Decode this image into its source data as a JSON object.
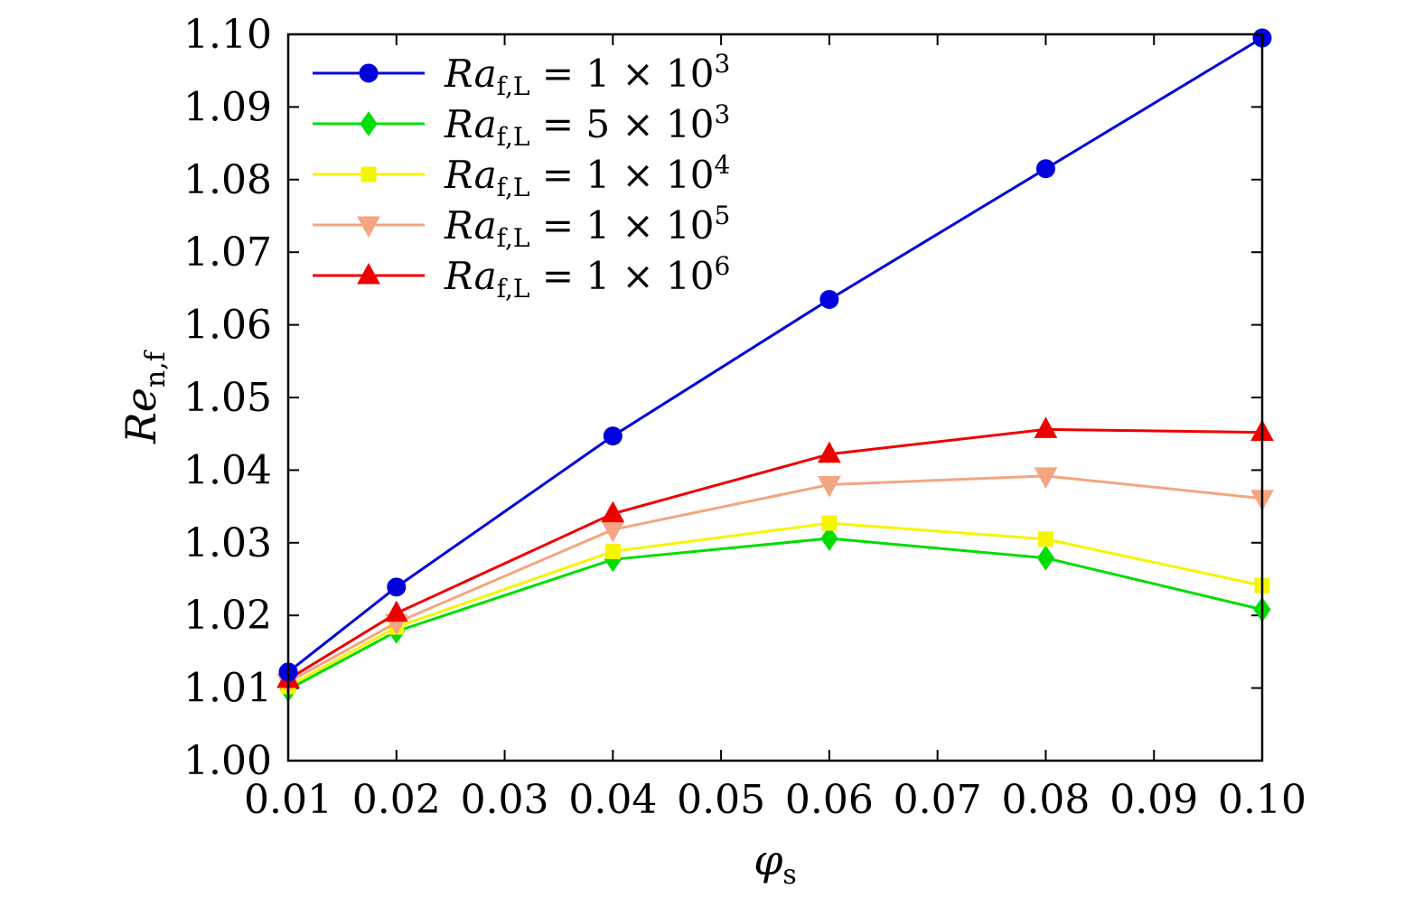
{
  "chart_data": {
    "type": "line",
    "x": [
      0.01,
      0.02,
      0.04,
      0.06,
      0.08,
      0.1
    ],
    "xlabel": {
      "base": "φ",
      "sub": "s"
    },
    "ylabel": {
      "base": "Re",
      "sub": "n,f"
    },
    "xlim": [
      0.01,
      0.1
    ],
    "ylim": [
      1.0,
      1.1
    ],
    "xticks": [
      "0.01",
      "0.02",
      "0.03",
      "0.04",
      "0.05",
      "0.06",
      "0.07",
      "0.08",
      "0.09",
      "0.10"
    ],
    "yticks": [
      "1.00",
      "1.01",
      "1.02",
      "1.03",
      "1.04",
      "1.05",
      "1.06",
      "1.07",
      "1.08",
      "1.09",
      "1.10"
    ],
    "grid": false,
    "legend_position": "top-left",
    "series": [
      {
        "name": "Ra_f,L = 1×10^3",
        "label": {
          "base": "Ra",
          "sub": "f,L",
          "rest": " = 1 × 10",
          "sup": "3"
        },
        "color": "#0000dd",
        "marker": "circle",
        "values": [
          1.0122,
          1.0239,
          1.0447,
          1.0635,
          1.0815,
          1.0995
        ]
      },
      {
        "name": "Ra_f,L = 5×10^3",
        "label": {
          "base": "Ra",
          "sub": "f,L",
          "rest": " = 5 × 10",
          "sup": "3"
        },
        "color": "#00dd00",
        "marker": "diamond",
        "values": [
          1.0098,
          1.0178,
          1.0277,
          1.0306,
          1.0279,
          1.0208
        ]
      },
      {
        "name": "Ra_f,L = 1×10^4",
        "label": {
          "base": "Ra",
          "sub": "f,L",
          "rest": " = 1 × 10",
          "sup": "4"
        },
        "color": "#f5f500",
        "marker": "square",
        "values": [
          1.0102,
          1.0184,
          1.0288,
          1.0327,
          1.0305,
          1.0241
        ]
      },
      {
        "name": "Ra_f,L = 1×10^5",
        "label": {
          "base": "Ra",
          "sub": "f,L",
          "rest": " = 1 × 10",
          "sup": "5"
        },
        "color": "#f4a582",
        "marker": "triangle-down",
        "values": [
          1.0108,
          1.019,
          1.0318,
          1.038,
          1.0392,
          1.0361
        ]
      },
      {
        "name": "Ra_f,L = 1×10^6",
        "label": {
          "base": "Ra",
          "sub": "f,L",
          "rest": " = 1 × 10",
          "sup": "6"
        },
        "color": "#ee0000",
        "marker": "triangle-up",
        "values": [
          1.0112,
          1.0203,
          1.034,
          1.0422,
          1.0456,
          1.0452
        ]
      }
    ]
  }
}
